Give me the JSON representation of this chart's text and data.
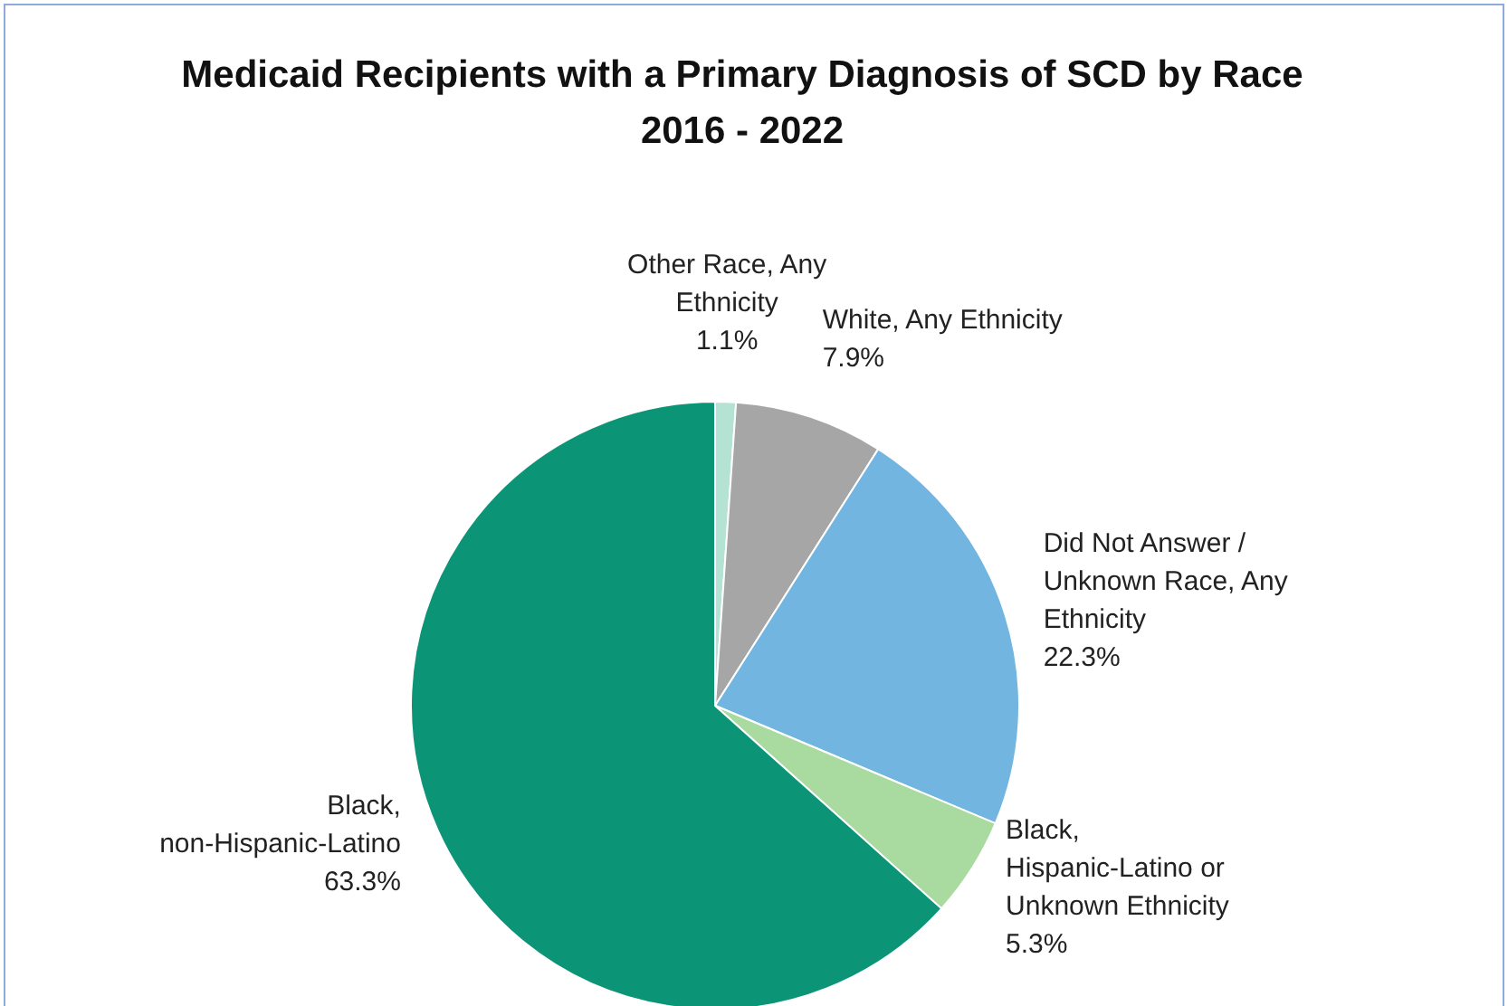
{
  "chart_data": {
    "type": "pie",
    "title": "Medicaid Recipients with a Primary Diagnosis of SCD by Race\n2016 - 2022",
    "categories": [
      "Other Race, Any Ethnicity",
      "White, Any Ethnicity",
      "Did Not Answer / Unknown Race, Any Ethnicity",
      "Black, Hispanic-Latino or Unknown Ethnicity",
      "Black, non-Hispanic-Latino"
    ],
    "values": [
      1.1,
      7.9,
      22.3,
      5.3,
      63.3
    ],
    "value_labels": [
      "1.1%",
      "7.9%",
      "22.3%",
      "5.3%",
      "63.3%"
    ],
    "colors": [
      "#b5e3d3",
      "#a6a6a6",
      "#72b5e0",
      "#a9dba0",
      "#0b9576"
    ]
  }
}
